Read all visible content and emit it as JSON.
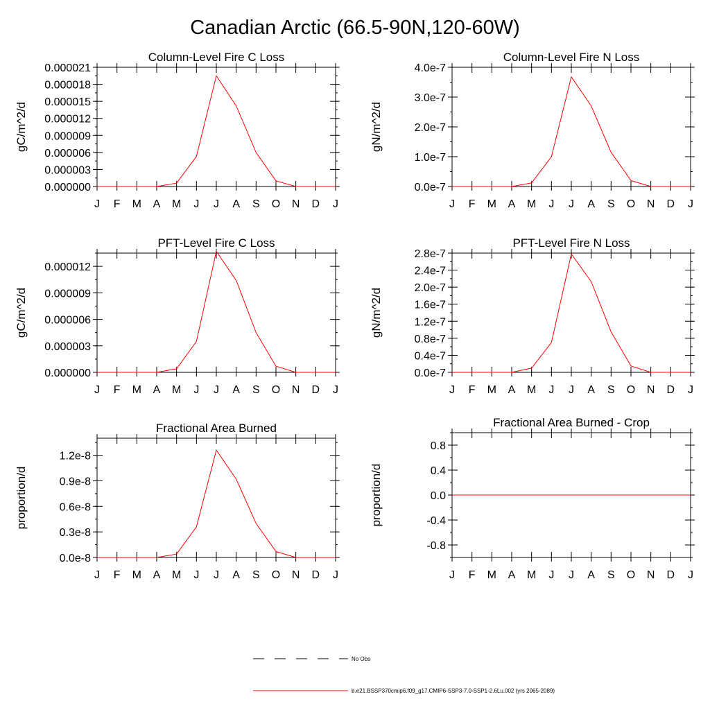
{
  "figure": {
    "title": "Canadian Arctic (66.5-90N,120-60W)"
  },
  "legend": [
    {
      "label": "No Obs",
      "color": "#000000",
      "dash": "dashed"
    },
    {
      "label": "b.e21.BSSP370cmip6.f09_g17.CMIP6-SSP3-7.0-SSP1-2.6Lu.002 (yrs 2065-2089)",
      "color": "#ff0000",
      "dash": "solid"
    }
  ],
  "chart_data": [
    {
      "type": "line",
      "title": "Column-Level Fire C Loss",
      "ylabel": "gC/m^2/d",
      "xlabel": "",
      "x": [
        "J",
        "F",
        "M",
        "A",
        "M",
        "J",
        "J",
        "A",
        "S",
        "O",
        "N",
        "D",
        "J"
      ],
      "ylim": [
        0,
        2.1e-05
      ],
      "yticks": [
        0,
        3e-06,
        6e-06,
        9e-06,
        1.2e-05,
        1.5e-05,
        1.8e-05,
        2.1e-05
      ],
      "ytick_labels": [
        "0.000000",
        "0.000003",
        "0.000006",
        "0.000009",
        "0.000012",
        "0.000015",
        "0.000018",
        "0.000021"
      ],
      "series": [
        {
          "color": "#ff0000",
          "values": [
            0,
            0,
            0,
            0,
            6e-07,
            5.3e-06,
            1.95e-05,
            1.42e-05,
            6e-06,
            1e-06,
            0,
            0,
            0
          ]
        }
      ]
    },
    {
      "type": "line",
      "title": "Column-Level Fire N Loss",
      "ylabel": "gN/m^2/d",
      "xlabel": "",
      "x": [
        "J",
        "F",
        "M",
        "A",
        "M",
        "J",
        "J",
        "A",
        "S",
        "O",
        "N",
        "D",
        "J"
      ],
      "ylim": [
        0,
        4e-07
      ],
      "yticks": [
        0,
        1e-07,
        2e-07,
        3e-07,
        4e-07
      ],
      "ytick_labels": [
        "0.0e-7",
        "1.0e-7",
        "2.0e-7",
        "3.0e-7",
        "4.0e-7"
      ],
      "series": [
        {
          "color": "#ff0000",
          "values": [
            0,
            0,
            0,
            0,
            1.2e-08,
            1e-07,
            3.68e-07,
            2.7e-07,
            1.15e-07,
            2e-08,
            0,
            0,
            0
          ]
        }
      ]
    },
    {
      "type": "line",
      "title": "PFT-Level Fire C Loss",
      "ylabel": "gC/m^2/d",
      "xlabel": "",
      "x": [
        "J",
        "F",
        "M",
        "A",
        "M",
        "J",
        "J",
        "A",
        "S",
        "O",
        "N",
        "D",
        "J"
      ],
      "ylim": [
        0,
        1.35e-05
      ],
      "yticks": [
        0,
        3e-06,
        6e-06,
        9e-06,
        1.2e-05
      ],
      "ytick_labels": [
        "0.000000",
        "0.000003",
        "0.000006",
        "0.000009",
        "0.000012"
      ],
      "series": [
        {
          "color": "#ff0000",
          "values": [
            0,
            0,
            0,
            0,
            4e-07,
            3.5e-06,
            1.37e-05,
            1.04e-05,
            4.5e-06,
            7e-07,
            0,
            0,
            0
          ]
        }
      ]
    },
    {
      "type": "line",
      "title": "PFT-Level Fire N Loss",
      "ylabel": "gN/m^2/d",
      "xlabel": "",
      "x": [
        "J",
        "F",
        "M",
        "A",
        "M",
        "J",
        "J",
        "A",
        "S",
        "O",
        "N",
        "D",
        "J"
      ],
      "ylim": [
        0,
        2.8e-07
      ],
      "yticks": [
        0,
        4e-08,
        8e-08,
        1.2e-07,
        1.6e-07,
        2e-07,
        2.4e-07,
        2.8e-07
      ],
      "ytick_labels": [
        "0.0e-7",
        "0.4e-7",
        "0.8e-7",
        "1.2e-7",
        "1.6e-7",
        "2.0e-7",
        "2.4e-7",
        "2.8e-7"
      ],
      "series": [
        {
          "color": "#ff0000",
          "values": [
            0,
            0,
            0,
            0,
            1e-08,
            7e-08,
            2.78e-07,
            2.13e-07,
            9.5e-08,
            1.5e-08,
            0,
            0,
            0
          ]
        }
      ]
    },
    {
      "type": "line",
      "title": "Fractional Area Burned",
      "ylabel": "proportion/d",
      "xlabel": "",
      "x": [
        "J",
        "F",
        "M",
        "A",
        "M",
        "J",
        "J",
        "A",
        "S",
        "O",
        "N",
        "D",
        "J"
      ],
      "ylim": [
        0,
        1.4e-08
      ],
      "yticks": [
        0,
        3e-09,
        6e-09,
        9e-09,
        1.2e-08
      ],
      "ytick_labels": [
        "0.0e-8",
        "0.3e-8",
        "0.6e-8",
        "0.9e-8",
        "1.2e-8"
      ],
      "series": [
        {
          "color": "#ff0000",
          "values": [
            0,
            0,
            0,
            0,
            4e-10,
            3.6e-09,
            1.26e-08,
            9.2e-09,
            4e-09,
            7e-10,
            0,
            0,
            0
          ]
        }
      ]
    },
    {
      "type": "line",
      "title": "Fractional Area Burned - Crop",
      "ylabel": "proportion/d",
      "xlabel": "",
      "x": [
        "J",
        "F",
        "M",
        "A",
        "M",
        "J",
        "J",
        "A",
        "S",
        "O",
        "N",
        "D",
        "J"
      ],
      "ylim": [
        -1.0,
        1.0
      ],
      "yticks": [
        -0.8,
        -0.4,
        0.0,
        0.4,
        0.8
      ],
      "ytick_labels": [
        "-0.8",
        "-0.4",
        "0.0",
        "0.4",
        "0.8"
      ],
      "series": [
        {
          "color": "#ff0000",
          "values": [
            0,
            0,
            0,
            0,
            0,
            0,
            0,
            0,
            0,
            0,
            0,
            0,
            0
          ]
        }
      ]
    }
  ]
}
